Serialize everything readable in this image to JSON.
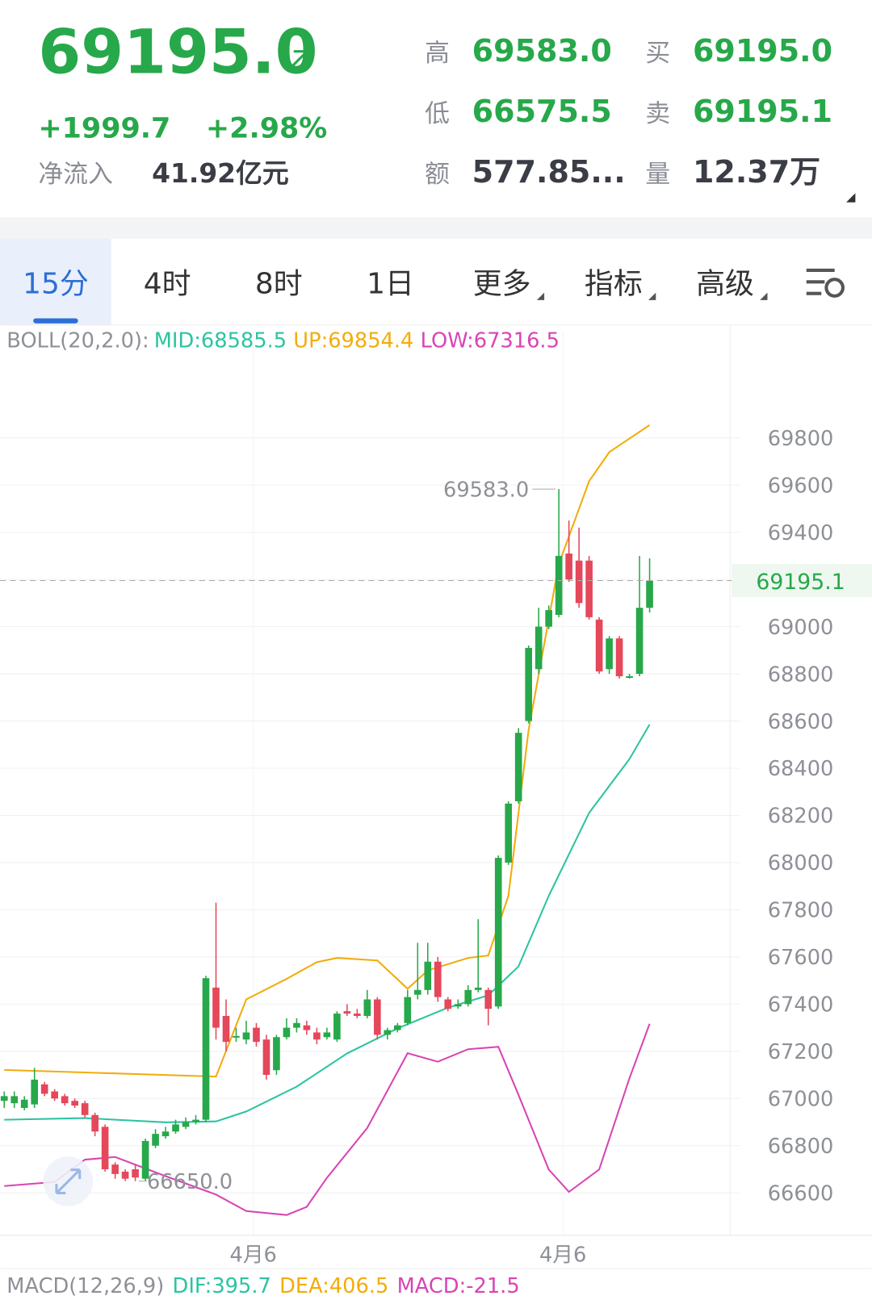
{
  "header": {
    "price": "69195.0",
    "change": "+1999.7",
    "change_pct": "+2.98%",
    "net_inflow_label": "净流入",
    "net_inflow": "41.92亿元",
    "stats": [
      {
        "label": "高",
        "value": "69583.0"
      },
      {
        "label": "低",
        "value": "66575.5"
      },
      {
        "label": "额",
        "value": "577.85..."
      },
      {
        "label": "买",
        "value": "69195.0"
      },
      {
        "label": "卖",
        "value": "69195.1"
      },
      {
        "label": "量",
        "value": "12.37万"
      }
    ]
  },
  "tabs": [
    "15分",
    "4时",
    "8时",
    "1日",
    "更多",
    "指标",
    "高级"
  ],
  "boll": {
    "name": "BOLL(20,2.0):",
    "mid": "MID:68585.5",
    "up": "UP:69854.4",
    "low": "LOW:67316.5"
  },
  "macd": {
    "name": "MACD(12,26,9)",
    "dif": "DIF:395.7",
    "dea": "DEA:406.5",
    "macd": "MACD:-21.5"
  },
  "chart_data": {
    "type": "candlestick",
    "up_color": "#27a84a",
    "down_color": "#e5475b",
    "ylim": [
      66420,
      70110
    ],
    "yticks": [
      66600,
      66800,
      67000,
      67200,
      67400,
      67600,
      67800,
      68000,
      68200,
      68400,
      68600,
      68800,
      69000,
      69200,
      69400,
      69600,
      69800
    ],
    "xticks": [
      {
        "value": 24.7,
        "label": "4月6"
      },
      {
        "value": 55.4,
        "label": "4月6"
      }
    ],
    "grid": true,
    "last_price": 69195.1,
    "high_mark": {
      "index": 55,
      "value": 69583,
      "label": "69583.0"
    },
    "low_mark": {
      "index": 13,
      "value": 66650,
      "label": "66650.0"
    },
    "open": [
      66990,
      66980,
      66960,
      66975,
      67060,
      67030,
      67010,
      66990,
      66980,
      66930,
      66880,
      66720,
      66690,
      66700,
      66660,
      66800,
      66840,
      66860,
      66880,
      66900,
      66910,
      67470,
      67350,
      67260,
      67250,
      67300,
      67250,
      67120,
      67260,
      67300,
      67310,
      67280,
      67260,
      67250,
      67370,
      67360,
      67350,
      67420,
      67270,
      67290,
      67320,
      67440,
      67460,
      67580,
      67420,
      67390,
      67400,
      67460,
      67460,
      67390,
      68000,
      68260,
      68600,
      68820,
      69000,
      69050,
      69310,
      69280,
      69280,
      69030,
      68820,
      68950,
      68790,
      68800,
      69080
    ],
    "high": [
      67030,
      67030,
      67010,
      67130,
      67070,
      67040,
      67020,
      67000,
      66990,
      66940,
      66890,
      66730,
      66700,
      66720,
      66830,
      66870,
      66880,
      66910,
      66920,
      66930,
      67520,
      67830,
      67420,
      67300,
      67330,
      67320,
      67270,
      67270,
      67340,
      67340,
      67330,
      67300,
      67300,
      67370,
      67400,
      67380,
      67460,
      67430,
      67300,
      67320,
      67460,
      67660,
      67660,
      67600,
      67430,
      67420,
      67480,
      67760,
      67470,
      68030,
      68260,
      68570,
      68920,
      69080,
      69090,
      69583,
      69450,
      69420,
      69300,
      69040,
      68960,
      68960,
      68800,
      69300,
      69290
    ],
    "low": [
      66960,
      66960,
      66950,
      66960,
      67010,
      66990,
      66970,
      66960,
      66920,
      66840,
      66690,
      66660,
      66650,
      66650,
      66650,
      66790,
      66830,
      66850,
      66870,
      66890,
      66900,
      67250,
      67200,
      67240,
      67230,
      67220,
      67080,
      67100,
      67250,
      67280,
      67270,
      67230,
      67250,
      67240,
      67350,
      67340,
      67340,
      67250,
      67250,
      67280,
      67310,
      67420,
      67440,
      67410,
      67370,
      67380,
      67390,
      67450,
      67310,
      67380,
      67990,
      68250,
      68590,
      68800,
      68990,
      69040,
      69190,
      69080,
      69030,
      68800,
      68800,
      68780,
      68780,
      68790,
      69060
    ],
    "close": [
      67010,
      67010,
      66995,
      67080,
      67020,
      67000,
      66980,
      66970,
      66930,
      66860,
      66700,
      66680,
      66660,
      66665,
      66820,
      66850,
      66860,
      66890,
      66900,
      66910,
      67510,
      67300,
      67240,
      67265,
      67280,
      67240,
      67100,
      67260,
      67300,
      67320,
      67290,
      67250,
      67280,
      67360,
      67360,
      67350,
      67420,
      67270,
      67290,
      67310,
      67430,
      67460,
      67580,
      67430,
      67380,
      67400,
      67460,
      67470,
      67380,
      68020,
      68250,
      68550,
      68910,
      69000,
      69070,
      69300,
      69200,
      69100,
      69040,
      68810,
      68950,
      68790,
      68790,
      69080,
      69195.1
    ],
    "series": [
      {
        "color": "#2cc4a0",
        "x": [
          0,
          8,
          16,
          21,
          24,
          29,
          34,
          39,
          44,
          48,
          51,
          54,
          58,
          62,
          64
        ],
        "values": [
          66910,
          66917,
          66899,
          66903,
          66945,
          67050,
          67191,
          67297,
          67385,
          67437,
          67560,
          67859,
          68211,
          68439,
          68585.5
        ]
      },
      {
        "color": "#f2ac0c",
        "x": [
          0,
          21,
          24,
          28,
          31,
          33,
          37,
          40,
          42,
          46,
          48,
          50,
          52,
          55,
          58,
          60,
          64
        ],
        "values": [
          67121,
          67093,
          67420,
          67507,
          67578,
          67596,
          67585,
          67465,
          67543,
          67596,
          67606,
          67859,
          68562,
          69266,
          69617,
          69740,
          69854.4
        ]
      },
      {
        "color": "#d944b4",
        "x": [
          0,
          5,
          8,
          11,
          16,
          21,
          24,
          28,
          30,
          32,
          36,
          40,
          43,
          46,
          49,
          51,
          54,
          56,
          59,
          62,
          64
        ],
        "values": [
          66629,
          66646,
          66741,
          66752,
          66671,
          66593,
          66523,
          66506,
          66541,
          66664,
          66875,
          67192,
          67156,
          67209,
          67219,
          67015,
          66699,
          66604,
          66699,
          67086,
          67316.5
        ]
      }
    ]
  }
}
